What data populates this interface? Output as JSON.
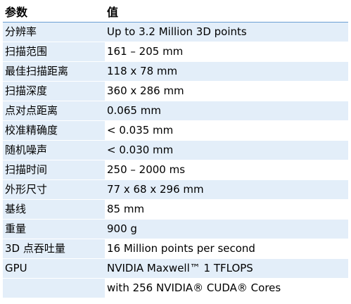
{
  "table": {
    "header": {
      "param": "参数",
      "value": "值"
    },
    "rows": [
      {
        "param": "分辨率",
        "value": "Up to 3.2 Million 3D points"
      },
      {
        "param": "扫描范围",
        "value": "161 – 205 mm"
      },
      {
        "param": "最佳扫描距离",
        "value": "118 x 78 mm"
      },
      {
        "param": "扫描深度",
        "value": "360 x 286 mm"
      },
      {
        "param": "点对点距离",
        "value": "0.065 mm"
      },
      {
        "param": "校准精确度",
        "value": "< 0.035 mm"
      },
      {
        "param": "随机噪声",
        "value": "< 0.030 mm"
      },
      {
        "param": "扫描时间",
        "value": "250 – 2000 ms"
      },
      {
        "param": "外形尺寸",
        "value": "77 x 68 x 296 mm"
      },
      {
        "param": "基线",
        "value": "85 mm"
      },
      {
        "param": "重量",
        "value": "900 g"
      },
      {
        "param": "3D 点吞吐量",
        "value": "16 Million points per second"
      },
      {
        "param": "GPU",
        "value": "NVIDIA Maxwell™ 1 TFLOPS"
      },
      {
        "param": "",
        "value": "with 256 NVIDIA® CUDA® Cores"
      }
    ]
  }
}
